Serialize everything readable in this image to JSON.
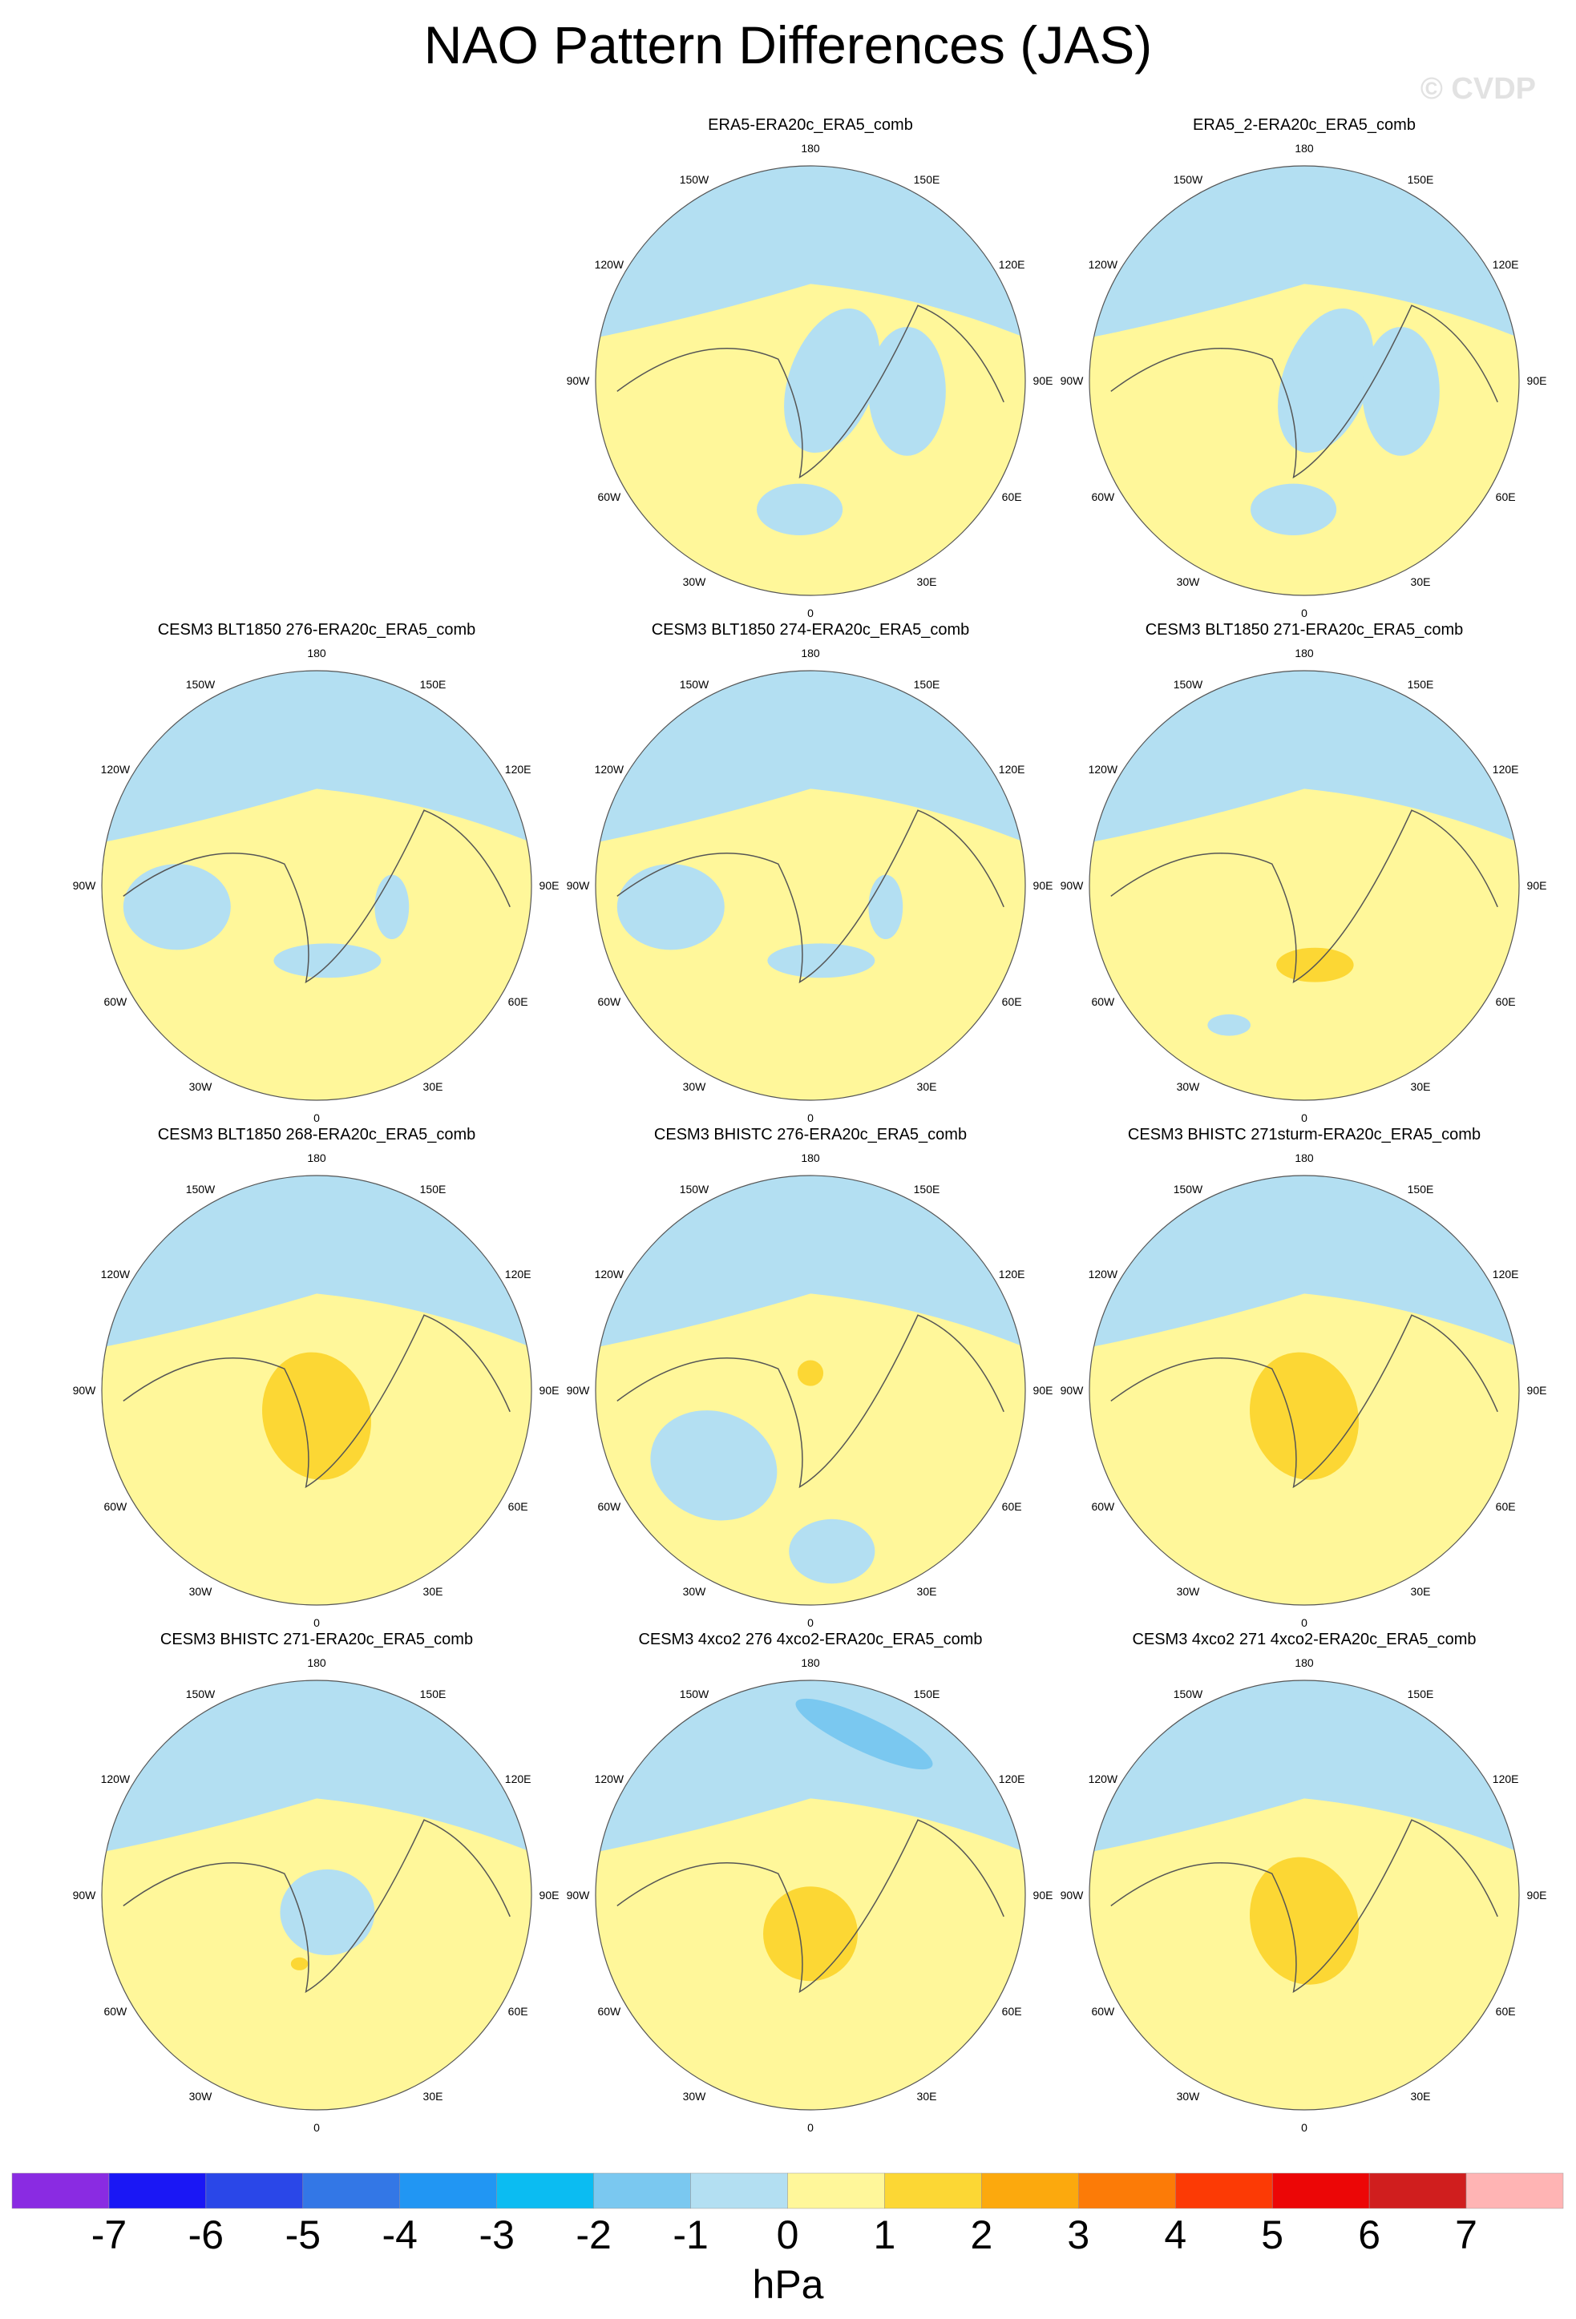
{
  "title": "NAO Pattern Differences (JAS)",
  "watermark": "© CVDP",
  "colors": {
    "neg_light": "#b3dff2",
    "neg_mid": "#7ac8f0",
    "pos_light": "#fff79a",
    "pos_mid": "#fcd734",
    "pos_strong": "#fca90d",
    "coast": "#555555"
  },
  "longitude_labels": [
    "180",
    "150E",
    "120E",
    "90E",
    "60E",
    "30E",
    "0",
    "30W",
    "60W",
    "90W",
    "120W",
    "150W"
  ],
  "panels": [
    {
      "title": "ERA5-ERA20c_ERA5_comb",
      "row": 0,
      "col": 1,
      "pattern": "mixed_blue_arctic"
    },
    {
      "title": "ERA5_2-ERA20c_ERA5_comb",
      "row": 0,
      "col": 2,
      "pattern": "mixed_blue_arctic"
    },
    {
      "title": "CESM3 BLT1850 276-ERA20c_ERA5_comb",
      "row": 1,
      "col": 0,
      "pattern": "blue_rim"
    },
    {
      "title": "CESM3 BLT1850 274-ERA20c_ERA5_comb",
      "row": 1,
      "col": 1,
      "pattern": "blue_rim"
    },
    {
      "title": "CESM3 BLT1850 271-ERA20c_ERA5_comb",
      "row": 1,
      "col": 2,
      "pattern": "blue_rim_orange_spot"
    },
    {
      "title": "CESM3 BLT1850 268-ERA20c_ERA5_comb",
      "row": 2,
      "col": 0,
      "pattern": "orange_center"
    },
    {
      "title": "CESM3 BHISTC 276-ERA20c_ERA5_comb",
      "row": 2,
      "col": 1,
      "pattern": "blue_atlantic"
    },
    {
      "title": "CESM3 BHISTC 271sturm-ERA20c_ERA5_comb",
      "row": 2,
      "col": 2,
      "pattern": "orange_center"
    },
    {
      "title": "CESM3 BHISTC 271-ERA20c_ERA5_comb",
      "row": 3,
      "col": 0,
      "pattern": "blue_center"
    },
    {
      "title": "CESM3 4xco2 276 4xco2-ERA20c_ERA5_comb",
      "row": 3,
      "col": 1,
      "pattern": "orange_blue_pacific"
    },
    {
      "title": "CESM3 4xco2 271 4xco2-ERA20c_ERA5_comb",
      "row": 3,
      "col": 2,
      "pattern": "orange_center"
    }
  ],
  "colorbar": {
    "colors": [
      "#8a2be2",
      "#1a17f5",
      "#2a47e8",
      "#3377e6",
      "#2196f3",
      "#0bbcf2",
      "#7ac8f0",
      "#b3dff2",
      "#fff79a",
      "#fcd734",
      "#fca90d",
      "#fc7b07",
      "#fc3a05",
      "#ec0606",
      "#d01e1e",
      "#ffb4b4"
    ],
    "tick_labels": [
      "-7",
      "-6",
      "-5",
      "-4",
      "-3",
      "-2",
      "-1",
      "0",
      "1",
      "2",
      "3",
      "4",
      "5",
      "6",
      "7"
    ],
    "units": "hPa"
  }
}
